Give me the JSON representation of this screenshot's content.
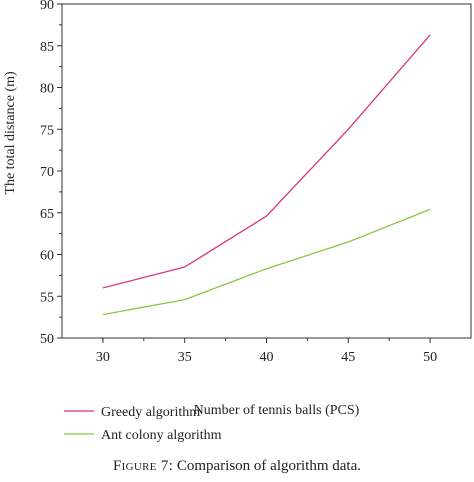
{
  "chart_data": {
    "type": "line",
    "xlabel": "Number of tennis balls (PCS)",
    "ylabel": "The total distance (m)",
    "xlim": [
      27.5,
      52.5
    ],
    "ylim": [
      50,
      90
    ],
    "x_ticks": [
      30,
      35,
      40,
      45,
      50
    ],
    "y_ticks": [
      50,
      55,
      60,
      65,
      70,
      75,
      80,
      85,
      90
    ],
    "grid": false,
    "legend_position": "bottom-left",
    "series": [
      {
        "name": "Greedy algorithm",
        "color": "#d6337f",
        "x": [
          30,
          35,
          40,
          45,
          50
        ],
        "values": [
          56.0,
          58.5,
          64.6,
          75.0,
          86.3
        ]
      },
      {
        "name": "Ant colony algorithm",
        "color": "#8cc63f",
        "x": [
          30,
          35,
          40,
          45,
          50
        ],
        "values": [
          52.8,
          54.6,
          58.3,
          61.5,
          65.4
        ]
      }
    ]
  },
  "caption": {
    "label": "Figure 7:",
    "text": " Comparison of algorithm data."
  }
}
